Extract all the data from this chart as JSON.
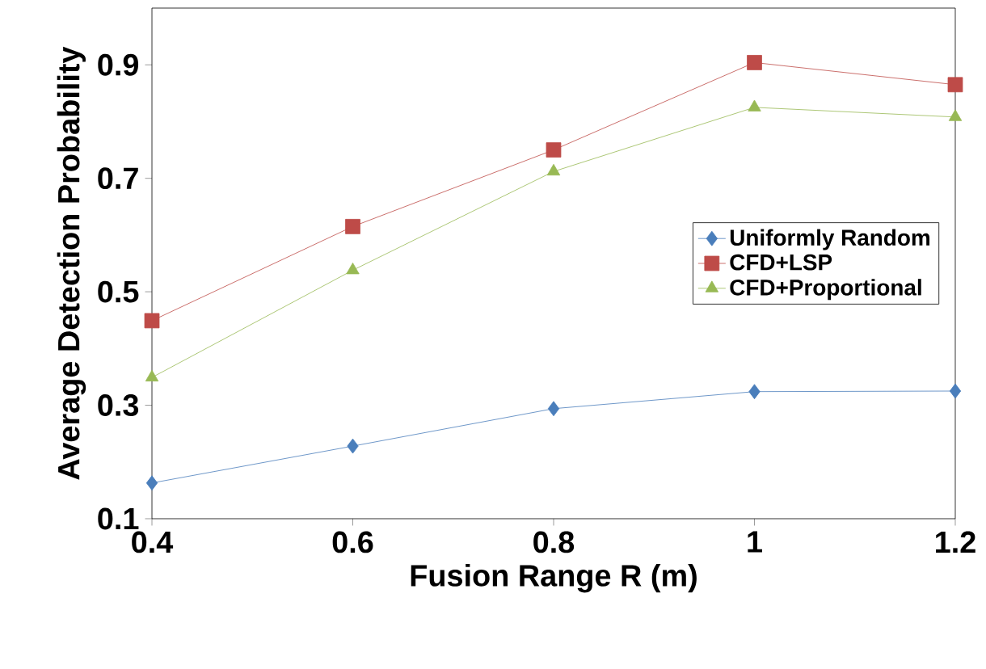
{
  "chart_data": {
    "type": "line",
    "xlabel": "Fusion Range R (m)",
    "ylabel": "Average Detection Probability",
    "x": [
      0.4,
      0.6,
      0.8,
      1,
      1.2
    ],
    "series": [
      {
        "name": "Uniformly Random",
        "color": "#4a7ebb",
        "marker": "diamond",
        "values": [
          0.163,
          0.228,
          0.294,
          0.324,
          0.325
        ]
      },
      {
        "name": "CFD+LSP",
        "color": "#be4b48",
        "marker": "square",
        "values": [
          0.449,
          0.615,
          0.75,
          0.904,
          0.865
        ]
      },
      {
        "name": "CFD+Proportional",
        "color": "#98b954",
        "marker": "triangle",
        "values": [
          0.349,
          0.538,
          0.712,
          0.825,
          0.808
        ]
      }
    ],
    "xlim": [
      0.4,
      1.2
    ],
    "xticks": [
      0.4,
      0.6,
      0.8,
      1,
      1.2
    ],
    "ylim": [
      0.1,
      1.0
    ],
    "yticks": [
      0.1,
      0.3,
      0.5,
      0.7,
      0.9
    ],
    "grid": false,
    "legend": "right",
    "line_style": "solid"
  }
}
